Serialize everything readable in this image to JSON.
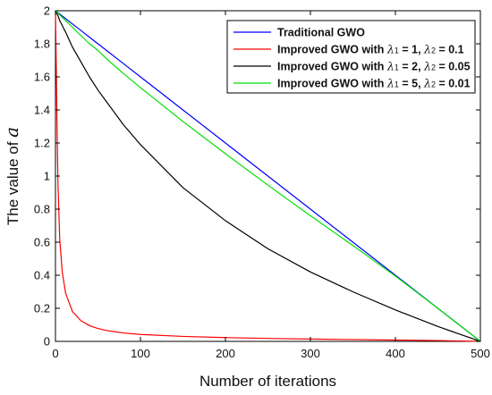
{
  "chart_data": {
    "type": "line",
    "title": "",
    "xlabel": "Number of iterations",
    "ylabel_prefix": "The value of ",
    "ylabel_symbol": "a",
    "xlim": [
      0,
      500
    ],
    "ylim": [
      0,
      2
    ],
    "xticks": [
      0,
      100,
      200,
      300,
      400,
      500
    ],
    "yticks": [
      0,
      0.2,
      0.4,
      0.6,
      0.8,
      1,
      1.2,
      1.4,
      1.6,
      1.8,
      2
    ],
    "grid": false,
    "legend_position": "top-right",
    "x": [
      0,
      1,
      2,
      3,
      5,
      8,
      12,
      20,
      30,
      40,
      50,
      60,
      80,
      100,
      150,
      200,
      250,
      300,
      350,
      400,
      450,
      500
    ],
    "series": [
      {
        "color": "#0000ff",
        "legend_text": "Traditional GWO",
        "legend_parts": [
          "Traditional GWO"
        ],
        "values": [
          2.0,
          1.996,
          1.992,
          1.988,
          1.98,
          1.968,
          1.952,
          1.92,
          1.88,
          1.84,
          1.8,
          1.76,
          1.68,
          1.6,
          1.4,
          1.2,
          1.0,
          0.8,
          0.6,
          0.4,
          0.2,
          0.0
        ]
      },
      {
        "color": "#ff0000",
        "legend_text": "Improved GWO with λ1 = 1, λ2 = 0.1",
        "legend_parts": [
          "Improved GWO with ",
          "λ",
          "1",
          " = 1, ",
          "λ",
          "2",
          " = 0.1"
        ],
        "values": [
          2.0,
          1.65,
          1.25,
          0.95,
          0.62,
          0.42,
          0.29,
          0.18,
          0.125,
          0.095,
          0.078,
          0.066,
          0.051,
          0.042,
          0.03,
          0.023,
          0.018,
          0.014,
          0.011,
          0.008,
          0.005,
          0.0
        ]
      },
      {
        "color": "#000000",
        "legend_text": "Improved GWO with λ1 = 2, λ2 = 0.05",
        "legend_parts": [
          "Improved GWO with ",
          "λ",
          "1",
          " = 2, ",
          "λ",
          "2",
          " = 0.05"
        ],
        "values": [
          2.0,
          1.99,
          1.98,
          1.97,
          1.94,
          1.91,
          1.87,
          1.78,
          1.69,
          1.6,
          1.52,
          1.45,
          1.31,
          1.19,
          0.93,
          0.73,
          0.56,
          0.42,
          0.3,
          0.19,
          0.09,
          0.0
        ]
      },
      {
        "color": "#00e000",
        "legend_text": "Improved GWO with λ1 = 5, λ2 = 0.01",
        "legend_parts": [
          "Improved GWO with ",
          "λ",
          "1",
          " = 5, ",
          "λ",
          "2",
          " = 0.01"
        ],
        "values": [
          2.0,
          1.995,
          1.99,
          1.985,
          1.975,
          1.96,
          1.94,
          1.9,
          1.85,
          1.8,
          1.76,
          1.71,
          1.62,
          1.535,
          1.33,
          1.135,
          0.945,
          0.76,
          0.58,
          0.395,
          0.2,
          0.0
        ]
      }
    ]
  }
}
